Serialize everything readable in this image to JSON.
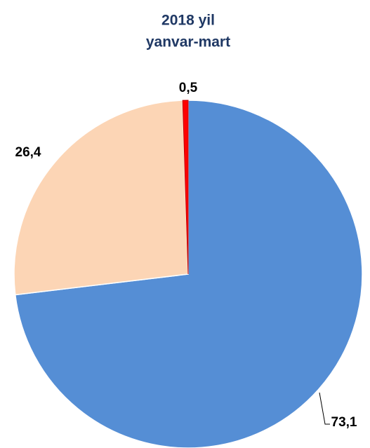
{
  "chart_data": {
    "type": "pie",
    "title": "2018 yil",
    "subtitle": "yanvar-mart",
    "values": [
      73.1,
      26.4,
      0.5
    ],
    "value_labels": [
      "73,1",
      "26,4",
      "0,5"
    ],
    "colors": [
      "#558ed5",
      "#fcd5b5",
      "#ff0000"
    ]
  }
}
